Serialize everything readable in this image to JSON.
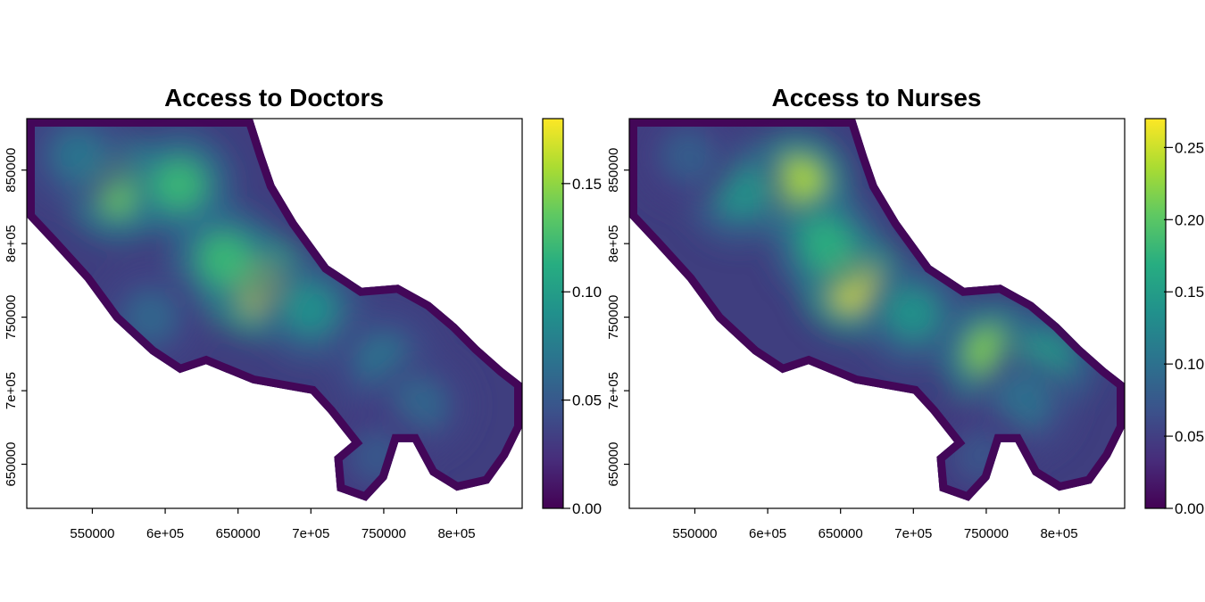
{
  "chart_data": [
    {
      "type": "heatmap",
      "title": "Access to Doctors",
      "xlabel": "",
      "ylabel": "",
      "xlim": [
        505000,
        845000
      ],
      "ylim": [
        620000,
        885000
      ],
      "x_ticks": [
        {
          "value": 550000,
          "label": "550000"
        },
        {
          "value": 600000,
          "label": "6e+05"
        },
        {
          "value": 650000,
          "label": "650000"
        },
        {
          "value": 700000,
          "label": "7e+05"
        },
        {
          "value": 750000,
          "label": "750000"
        },
        {
          "value": 800000,
          "label": "8e+05"
        }
      ],
      "y_ticks": [
        {
          "value": 650000,
          "label": "650000"
        },
        {
          "value": 700000,
          "label": "7e+05"
        },
        {
          "value": 750000,
          "label": "750000"
        },
        {
          "value": 800000,
          "label": "8e+05"
        },
        {
          "value": 850000,
          "label": "850000"
        }
      ],
      "colorbar": {
        "min": 0,
        "max": 0.18,
        "ticks": [
          {
            "value": 0.0,
            "label": "0.00"
          },
          {
            "value": 0.05,
            "label": "0.05"
          },
          {
            "value": 0.1,
            "label": "0.10"
          },
          {
            "value": 0.15,
            "label": "0.15"
          }
        ]
      },
      "hotspots": [
        {
          "x": 663000,
          "y": 772000,
          "value": 0.18
        },
        {
          "x": 568000,
          "y": 838000,
          "value": 0.14
        },
        {
          "x": 610000,
          "y": 840000,
          "value": 0.12
        },
        {
          "x": 640000,
          "y": 790000,
          "value": 0.12
        },
        {
          "x": 700000,
          "y": 755000,
          "value": 0.09
        },
        {
          "x": 750000,
          "y": 720000,
          "value": 0.07
        },
        {
          "x": 540000,
          "y": 860000,
          "value": 0.07
        },
        {
          "x": 775000,
          "y": 690000,
          "value": 0.06
        },
        {
          "x": 590000,
          "y": 750000,
          "value": 0.06
        },
        {
          "x": 745000,
          "y": 655000,
          "value": 0.05
        }
      ]
    },
    {
      "type": "heatmap",
      "title": "Access to Nurses",
      "xlabel": "",
      "ylabel": "",
      "xlim": [
        505000,
        845000
      ],
      "ylim": [
        620000,
        885000
      ],
      "x_ticks": [
        {
          "value": 550000,
          "label": "550000"
        },
        {
          "value": 600000,
          "label": "6e+05"
        },
        {
          "value": 650000,
          "label": "650000"
        },
        {
          "value": 700000,
          "label": "7e+05"
        },
        {
          "value": 750000,
          "label": "750000"
        },
        {
          "value": 800000,
          "label": "8e+05"
        }
      ],
      "y_ticks": [
        {
          "value": 650000,
          "label": "650000"
        },
        {
          "value": 700000,
          "label": "7e+05"
        },
        {
          "value": 750000,
          "label": "750000"
        },
        {
          "value": 800000,
          "label": "8e+05"
        },
        {
          "value": 850000,
          "label": "850000"
        }
      ],
      "colorbar": {
        "min": 0,
        "max": 0.27,
        "ticks": [
          {
            "value": 0.0,
            "label": "0.00"
          },
          {
            "value": 0.05,
            "label": "0.05"
          },
          {
            "value": 0.1,
            "label": "0.10"
          },
          {
            "value": 0.15,
            "label": "0.15"
          },
          {
            "value": 0.2,
            "label": "0.20"
          },
          {
            "value": 0.25,
            "label": "0.25"
          }
        ]
      },
      "hotspots": [
        {
          "x": 658000,
          "y": 773000,
          "value": 0.26
        },
        {
          "x": 620000,
          "y": 840000,
          "value": 0.24
        },
        {
          "x": 755000,
          "y": 725000,
          "value": 0.22
        },
        {
          "x": 640000,
          "y": 800000,
          "value": 0.17
        },
        {
          "x": 700000,
          "y": 752000,
          "value": 0.14
        },
        {
          "x": 790000,
          "y": 720000,
          "value": 0.15
        },
        {
          "x": 580000,
          "y": 835000,
          "value": 0.14
        },
        {
          "x": 545000,
          "y": 860000,
          "value": 0.08
        },
        {
          "x": 775000,
          "y": 690000,
          "value": 0.1
        },
        {
          "x": 745000,
          "y": 655000,
          "value": 0.07
        }
      ]
    }
  ]
}
